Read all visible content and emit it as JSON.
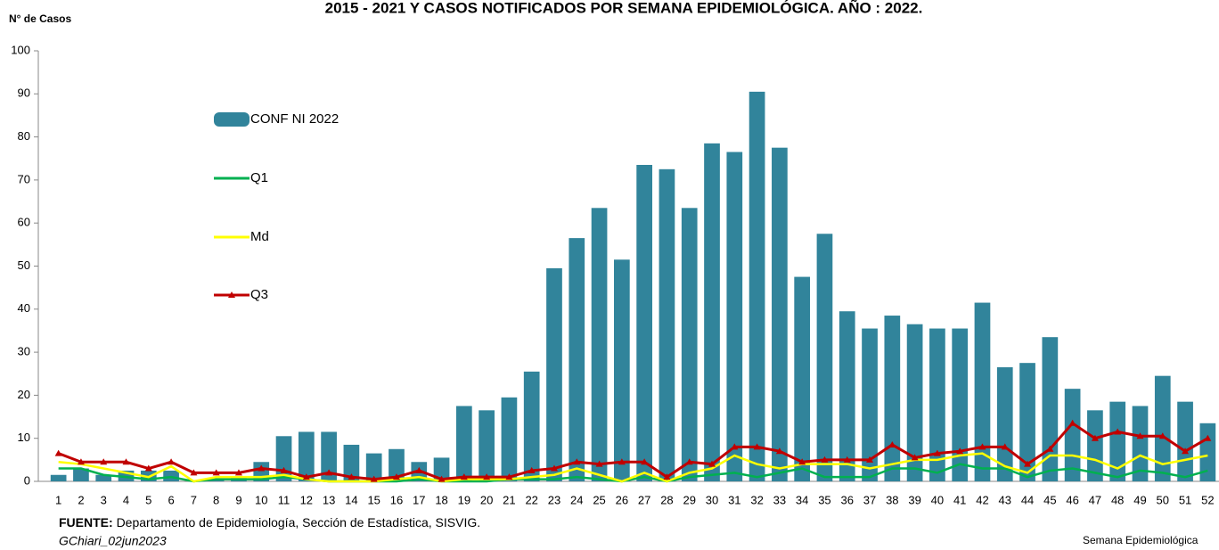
{
  "chart_data": {
    "type": "bar_line",
    "title": "2015 - 2021 Y  CASOS NOTIFICADOS POR SEMANA EPIDEMIOLÓGICA. AÑO : 2022.",
    "y_axis_label": "N° de Casos",
    "x_axis_label": "Semana Epidemiológica",
    "source_label": "FUENTE:",
    "source": "Departamento de Epidemiología, Sección de Estadística, SISVIG.",
    "author": "GChiari_02jun2023",
    "categories": [
      "1",
      "2",
      "3",
      "4",
      "5",
      "6",
      "7",
      "8",
      "9",
      "10",
      "11",
      "12",
      "13",
      "14",
      "15",
      "16",
      "17",
      "18",
      "19",
      "20",
      "21",
      "22",
      "23",
      "24",
      "25",
      "26",
      "27",
      "28",
      "29",
      "30",
      "31",
      "32",
      "33",
      "34",
      "35",
      "36",
      "37",
      "38",
      "39",
      "40",
      "41",
      "42",
      "43",
      "44",
      "45",
      "46",
      "47",
      "48",
      "49",
      "50",
      "51",
      "52"
    ],
    "ylim": [
      0,
      100
    ],
    "yticks": [
      0,
      10,
      20,
      30,
      40,
      50,
      60,
      70,
      80,
      90,
      100
    ],
    "series": [
      {
        "name": "CONF NI 2022",
        "kind": "bar",
        "color": "#31849b",
        "values": [
          1.5,
          3,
          1.5,
          2.5,
          2.5,
          2.5,
          0,
          0.5,
          1,
          4.5,
          10.5,
          11.5,
          11.5,
          8.5,
          6.5,
          7.5,
          4.5,
          5.5,
          17.5,
          16.5,
          19.5,
          25.5,
          49.5,
          56.5,
          63.5,
          51.5,
          73.5,
          72.5,
          63.5,
          78.5,
          76.5,
          90.5,
          77.5,
          47.5,
          57.5,
          39.5,
          35.5,
          38.5,
          36.5,
          35.5,
          35.5,
          41.5,
          26.5,
          27.5,
          33.5,
          21.5,
          16.5,
          18.5,
          17.5,
          24.5,
          18.5,
          13.5
        ]
      },
      {
        "name": "Q1",
        "kind": "line",
        "color": "#00b050",
        "values": [
          3,
          3,
          1.5,
          1,
          0.5,
          1,
          0,
          0.5,
          0.5,
          0.5,
          1,
          0.5,
          0,
          0,
          0,
          0,
          0.5,
          0,
          0,
          0,
          0.5,
          0.5,
          0.5,
          1,
          0.5,
          0,
          1,
          0,
          1,
          1.5,
          2,
          1,
          2,
          3,
          1,
          1,
          1,
          3,
          3,
          2,
          4,
          3,
          3,
          1,
          2.5,
          3,
          2,
          1,
          2.5,
          2,
          1,
          2.5
        ]
      },
      {
        "name": "Md",
        "kind": "line",
        "color": "#ffff00",
        "values": [
          4.5,
          4,
          3,
          2,
          1,
          3.5,
          0,
          1,
          1,
          1,
          1.5,
          0.5,
          0,
          0,
          0,
          0.5,
          1,
          0,
          0.5,
          0.5,
          0.5,
          1,
          1.5,
          3,
          1.5,
          0,
          2,
          0,
          2,
          3,
          6,
          4,
          3,
          4,
          4,
          4,
          3,
          4,
          5,
          5,
          6,
          6.5,
          3.5,
          2,
          6,
          6,
          5,
          3,
          6,
          4,
          5,
          6
        ]
      },
      {
        "name": "Q3",
        "kind": "line",
        "marker": "triangle",
        "color": "#c00000",
        "values": [
          6.5,
          4.5,
          4.5,
          4.5,
          3,
          4.5,
          2,
          2,
          2,
          3,
          2.5,
          1,
          2,
          1,
          0.5,
          1,
          2.5,
          0.5,
          1,
          1,
          1,
          2.5,
          3,
          4.5,
          4,
          4.5,
          4.5,
          1,
          4.5,
          4,
          8,
          8,
          7,
          4.5,
          5,
          5,
          5,
          8.5,
          5.5,
          6.5,
          7,
          8,
          8,
          4,
          7.5,
          13.5,
          10,
          11.5,
          10.5,
          10.5,
          7,
          10
        ]
      }
    ]
  }
}
